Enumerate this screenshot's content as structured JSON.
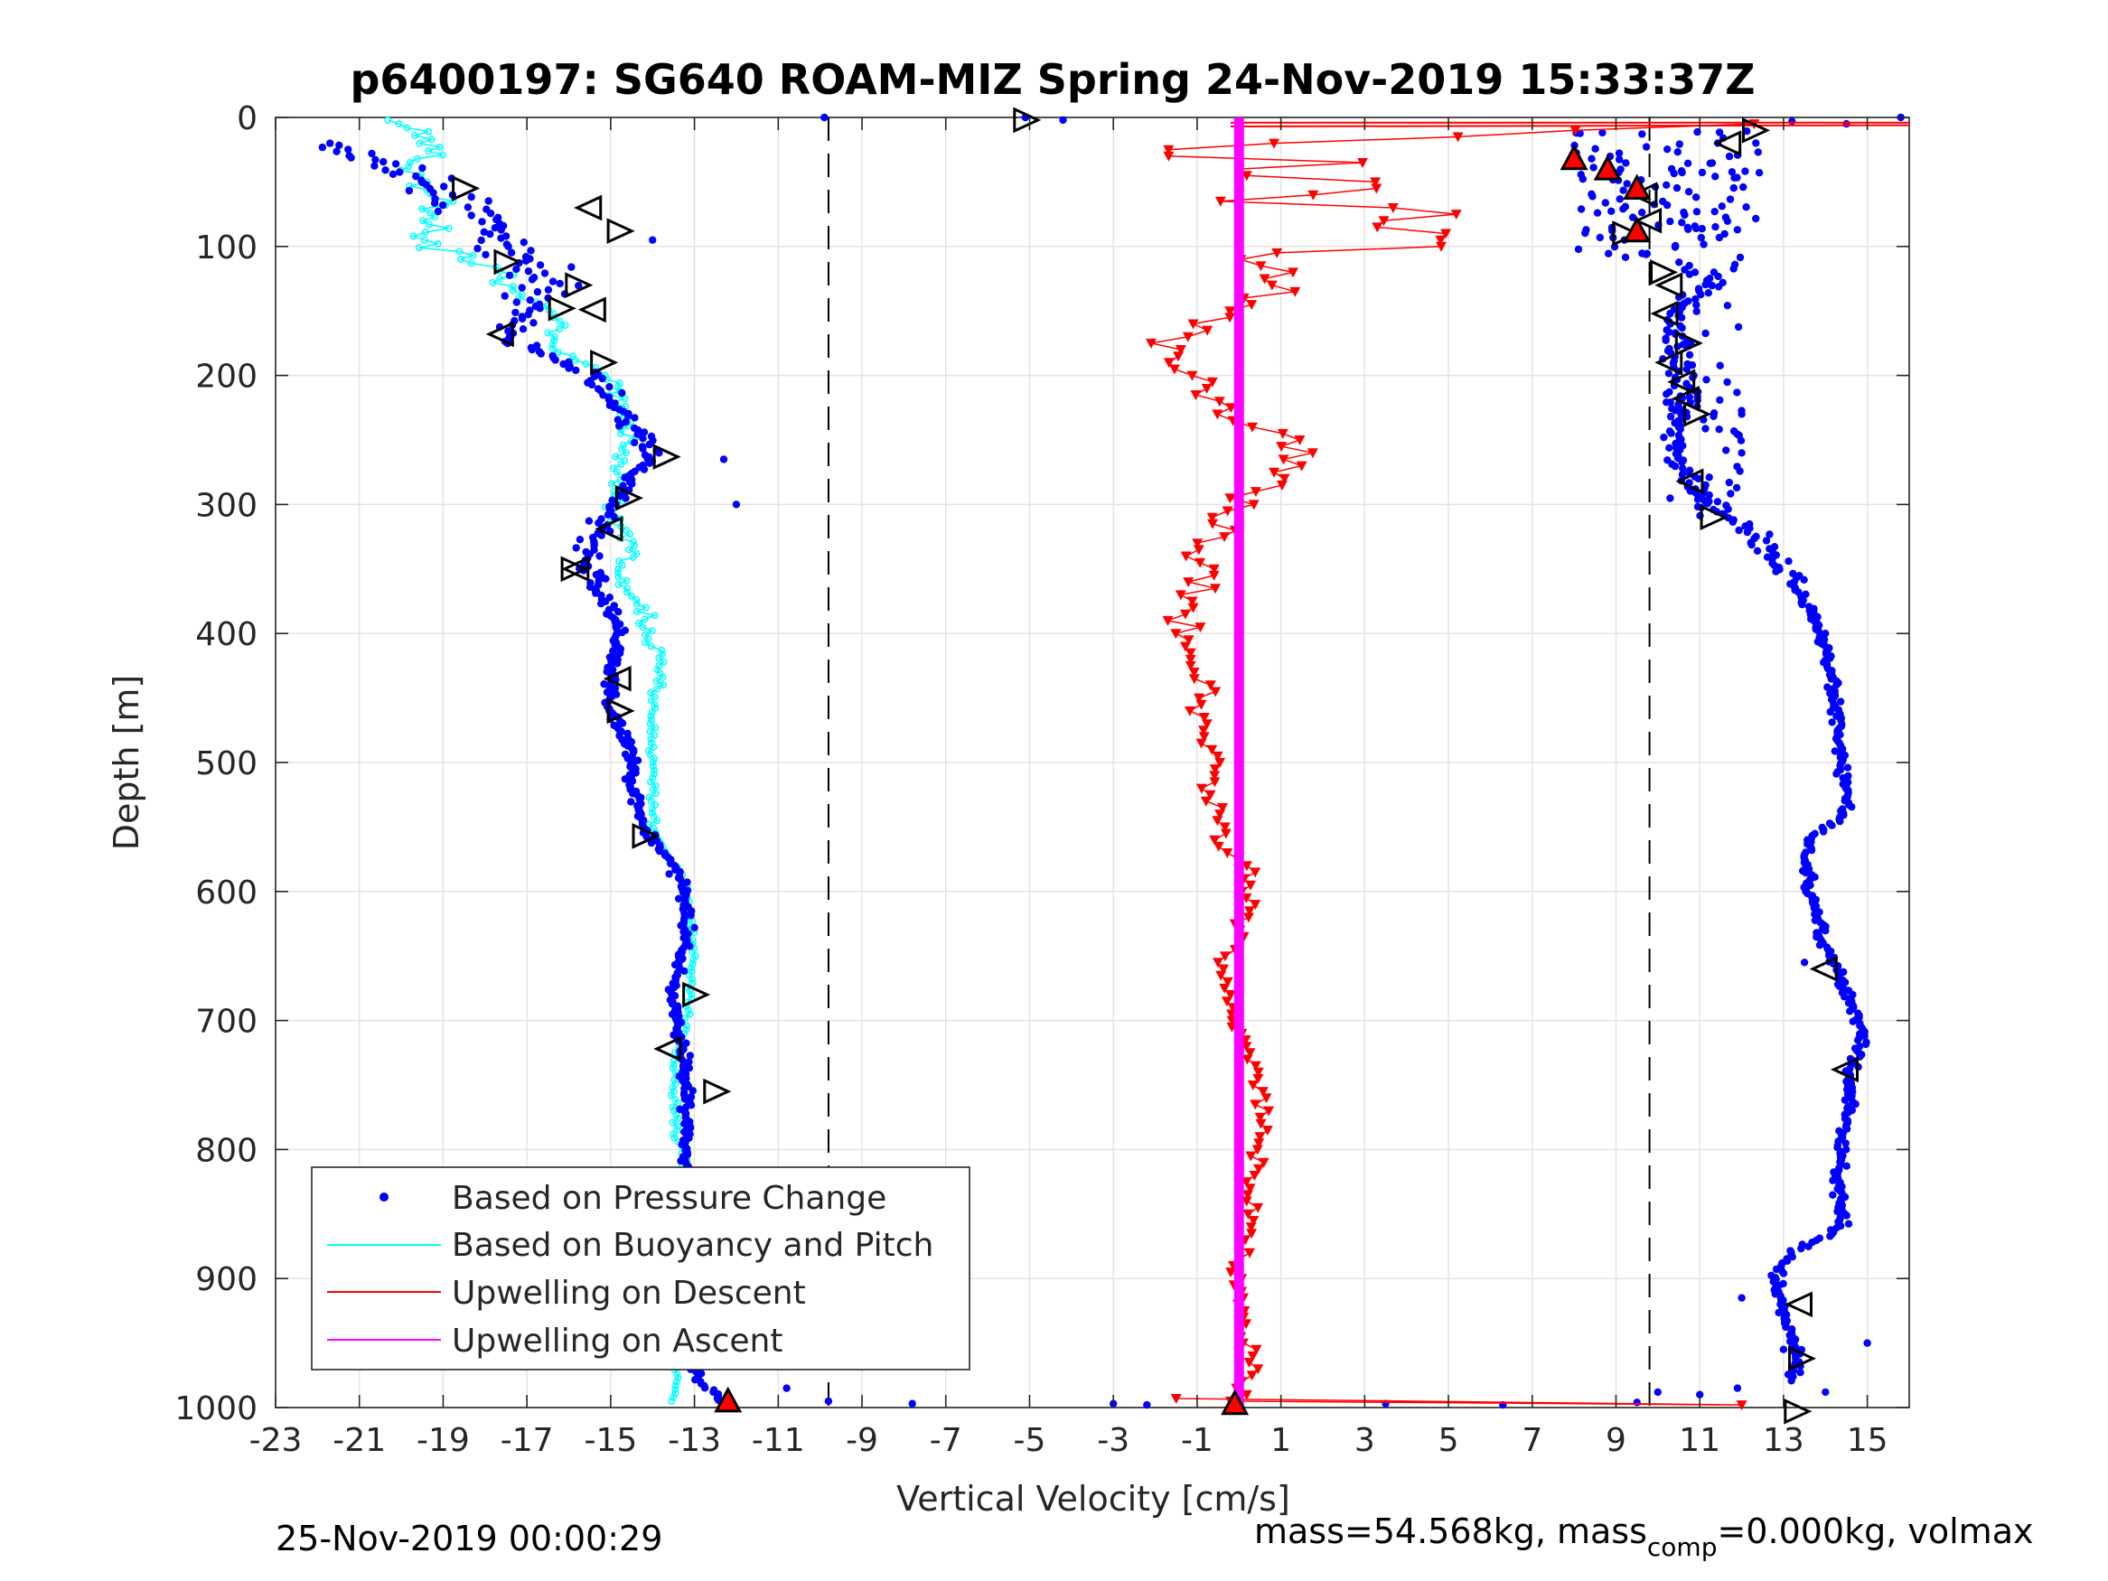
{
  "footer": {
    "timestamp": "25-Nov-2019 00:00:29",
    "mass_prefix": "mass=54.568kg, mass",
    "mass_sub": "comp",
    "mass_suffix": "=0.000kg, volmax"
  },
  "chart_data": {
    "type": "scatter",
    "title": "p6400197: SG640 ROAM-MIZ Spring 24-Nov-2019 15:33:37Z",
    "xlabel": "Vertical Velocity [cm/s]",
    "ylabel": "Depth [m]",
    "xlim": [
      -23,
      16
    ],
    "ylim": [
      1000,
      0
    ],
    "y_reversed": true,
    "xticks": [
      -23,
      -21,
      -19,
      -17,
      -15,
      -13,
      -11,
      -9,
      -7,
      -5,
      -3,
      -1,
      1,
      3,
      5,
      7,
      9,
      11,
      13,
      15
    ],
    "yticks": [
      0,
      100,
      200,
      300,
      400,
      500,
      600,
      700,
      800,
      900,
      1000
    ],
    "grid": true,
    "legend_position": "bottom-left",
    "reference_lines": [
      -9.8,
      9.8
    ],
    "colors": {
      "pressure": "#0000ff",
      "buoyancy": "#00ffff",
      "descent": "#ff0000",
      "ascent": "#ff00ff",
      "markers": "#000000"
    },
    "series": [
      {
        "name": "Based on Pressure Change",
        "style": "dots",
        "descent_profile": [
          [
            -22,
            20
          ],
          [
            -21,
            25
          ],
          [
            -20,
            40
          ],
          [
            -19,
            60
          ],
          [
            -18,
            75
          ],
          [
            -17.5,
            100
          ],
          [
            -17,
            115
          ],
          [
            -16.5,
            130
          ],
          [
            -17,
            150
          ],
          [
            -17.5,
            170
          ],
          [
            -16.5,
            185
          ],
          [
            -15.5,
            200
          ],
          [
            -15,
            220
          ],
          [
            -14.5,
            240
          ],
          [
            -14,
            260
          ],
          [
            -14.5,
            280
          ],
          [
            -15,
            300
          ],
          [
            -15.5,
            330
          ],
          [
            -15.5,
            360
          ],
          [
            -15,
            380
          ],
          [
            -14.8,
            400
          ],
          [
            -15,
            430
          ],
          [
            -15,
            460
          ],
          [
            -14.5,
            490
          ],
          [
            -14.5,
            520
          ],
          [
            -14.2,
            550
          ],
          [
            -13.5,
            580
          ],
          [
            -13.2,
            600
          ],
          [
            -13.2,
            640
          ],
          [
            -13.5,
            680
          ],
          [
            -13.3,
            720
          ],
          [
            -13.2,
            760
          ],
          [
            -13.2,
            800
          ],
          [
            -13.3,
            850
          ],
          [
            -13.5,
            900
          ],
          [
            -13.4,
            950
          ],
          [
            -12.8,
            980
          ],
          [
            -12.4,
            995
          ]
        ],
        "ascent_profile": [
          [
            11,
            120
          ],
          [
            10.5,
            150
          ],
          [
            10.4,
            180
          ],
          [
            10.6,
            210
          ],
          [
            10.5,
            240
          ],
          [
            10.5,
            270
          ],
          [
            11.2,
            300
          ],
          [
            12.2,
            320
          ],
          [
            13,
            350
          ],
          [
            13.6,
            380
          ],
          [
            14,
            410
          ],
          [
            14.2,
            450
          ],
          [
            14.4,
            500
          ],
          [
            14.5,
            540
          ],
          [
            13.6,
            560
          ],
          [
            13.6,
            600
          ],
          [
            14,
            640
          ],
          [
            14.5,
            680
          ],
          [
            14.9,
            710
          ],
          [
            14.6,
            740
          ],
          [
            14.5,
            780
          ],
          [
            14.3,
            820
          ],
          [
            14.4,
            860
          ],
          [
            13.2,
            880
          ],
          [
            12.8,
            900
          ],
          [
            13,
            930
          ],
          [
            13.4,
            960
          ],
          [
            13.2,
            980
          ]
        ],
        "outliers": [
          [
            -5.1,
            0
          ],
          [
            -4.2,
            2
          ],
          [
            -9.9,
            0
          ],
          [
            -12,
            300
          ],
          [
            -12.3,
            265
          ],
          [
            -14,
            95
          ],
          [
            -10.8,
            985
          ],
          [
            -9.8,
            995
          ],
          [
            -7.8,
            997
          ],
          [
            -3,
            997
          ],
          [
            -2.2,
            998
          ],
          [
            3.5,
            997
          ],
          [
            6.3,
            998
          ],
          [
            9.5,
            996
          ],
          [
            10,
            988
          ],
          [
            11,
            990
          ],
          [
            11.9,
            985
          ],
          [
            14,
            988
          ],
          [
            15,
            950
          ],
          [
            13,
            955
          ],
          [
            12,
            915
          ],
          [
            13.5,
            655
          ],
          [
            8,
            35
          ],
          [
            9.2,
            95
          ],
          [
            12,
            260
          ],
          [
            12,
            230
          ],
          [
            15.8,
            0
          ],
          [
            14.5,
            5
          ],
          [
            13.2,
            3
          ]
        ]
      },
      {
        "name": "Based on Buoyancy and Pitch",
        "style": "line-circles",
        "profile": [
          [
            -20,
            5
          ],
          [
            -19,
            20
          ],
          [
            -20,
            40
          ],
          [
            -19,
            60
          ],
          [
            -19.5,
            80
          ],
          [
            -19,
            100
          ],
          [
            -18,
            115
          ],
          [
            -17,
            140
          ],
          [
            -16,
            160
          ],
          [
            -16.5,
            180
          ],
          [
            -15,
            200
          ],
          [
            -14.8,
            220
          ],
          [
            -14.5,
            250
          ],
          [
            -14.8,
            280
          ],
          [
            -15,
            310
          ],
          [
            -14.5,
            330
          ],
          [
            -14.8,
            360
          ],
          [
            -14.2,
            380
          ],
          [
            -14,
            400
          ],
          [
            -13.8,
            420
          ],
          [
            -14,
            450
          ],
          [
            -14,
            480
          ],
          [
            -14,
            500
          ],
          [
            -14,
            520
          ],
          [
            -14,
            550
          ],
          [
            -13.5,
            580
          ],
          [
            -13.2,
            600
          ],
          [
            -13,
            650
          ],
          [
            -13.2,
            700
          ],
          [
            -13.5,
            740
          ],
          [
            -13.5,
            780
          ],
          [
            -13.3,
            800
          ],
          [
            -13.2,
            850
          ],
          [
            -13.2,
            900
          ],
          [
            -13.3,
            950
          ],
          [
            -13.5,
            990
          ]
        ]
      },
      {
        "name": "Upwelling on Descent",
        "style": "line-triangles-down",
        "profile": [
          [
            12,
            5
          ],
          [
            -3,
            25
          ],
          [
            3,
            35
          ],
          [
            -1,
            45
          ],
          [
            4,
            55
          ],
          [
            0,
            65
          ],
          [
            5,
            75
          ],
          [
            2,
            85
          ],
          [
            6,
            95
          ],
          [
            0,
            105
          ],
          [
            1,
            120
          ],
          [
            0.5,
            140
          ],
          [
            -1,
            160
          ],
          [
            -1.5,
            180
          ],
          [
            -1,
            200
          ],
          [
            -0.5,
            220
          ],
          [
            0.5,
            240
          ],
          [
            1.5,
            260
          ],
          [
            1,
            280
          ],
          [
            0,
            300
          ],
          [
            -0.5,
            320
          ],
          [
            -1,
            340
          ],
          [
            -0.8,
            360
          ],
          [
            -1,
            380
          ],
          [
            -1.3,
            400
          ],
          [
            -1.2,
            420
          ],
          [
            -0.8,
            440
          ],
          [
            -1,
            460
          ],
          [
            -0.8,
            480
          ],
          [
            -0.5,
            500
          ],
          [
            -0.8,
            520
          ],
          [
            -0.5,
            540
          ],
          [
            -0.5,
            560
          ],
          [
            0.2,
            580
          ],
          [
            0.2,
            620
          ],
          [
            -0.3,
            660
          ],
          [
            -0.2,
            700
          ],
          [
            0.5,
            740
          ],
          [
            0.5,
            780
          ],
          [
            0.3,
            820
          ],
          [
            0.3,
            860
          ],
          [
            -0.1,
            900
          ],
          [
            0.2,
            940
          ],
          [
            0.3,
            960
          ],
          [
            0.1,
            980
          ],
          [
            0,
            995
          ]
        ]
      },
      {
        "name": "Upwelling on Ascent",
        "style": "thick-line",
        "profile": [
          [
            0,
            0
          ],
          [
            0,
            1000
          ]
        ]
      }
    ],
    "turn_markers": {
      "right_pointing": [
        [
          -5.1,
          2
        ],
        [
          -18.5,
          55
        ],
        [
          -14.8,
          88
        ],
        [
          -17.5,
          112
        ],
        [
          -15.8,
          130
        ],
        [
          -16.2,
          148
        ],
        [
          -15.2,
          190
        ],
        [
          -13.7,
          263
        ],
        [
          -14.6,
          295
        ],
        [
          -15.9,
          350
        ],
        [
          -14.8,
          460
        ],
        [
          -14.2,
          557
        ],
        [
          -13,
          680
        ],
        [
          -12.5,
          755
        ],
        [
          10.1,
          120
        ],
        [
          9.2,
          90
        ],
        [
          12.3,
          10
        ],
        [
          11.3,
          310
        ],
        [
          10.7,
          175
        ],
        [
          10.9,
          230
        ],
        [
          13.3,
          1003
        ],
        [
          13.4,
          962
        ]
      ],
      "left_pointing": [
        [
          -15.5,
          70
        ],
        [
          -15.4,
          149
        ],
        [
          -17.6,
          168
        ],
        [
          -15,
          319
        ],
        [
          -14.8,
          435
        ],
        [
          -13.6,
          722
        ],
        [
          -15.8,
          350
        ],
        [
          11.7,
          20
        ],
        [
          9.7,
          60
        ],
        [
          9.8,
          80
        ],
        [
          10.3,
          130
        ],
        [
          10.2,
          152
        ],
        [
          10.3,
          190
        ],
        [
          10.6,
          205
        ],
        [
          10.7,
          218
        ],
        [
          10.8,
          282
        ],
        [
          14,
          660
        ],
        [
          14.5,
          738
        ],
        [
          13.4,
          920
        ]
      ],
      "red_filled": [
        [
          8,
          32
        ],
        [
          8.8,
          40
        ],
        [
          9.5,
          55
        ],
        [
          9.5,
          88
        ],
        [
          -12.2,
          995
        ],
        [
          -0.1,
          997
        ]
      ]
    }
  }
}
